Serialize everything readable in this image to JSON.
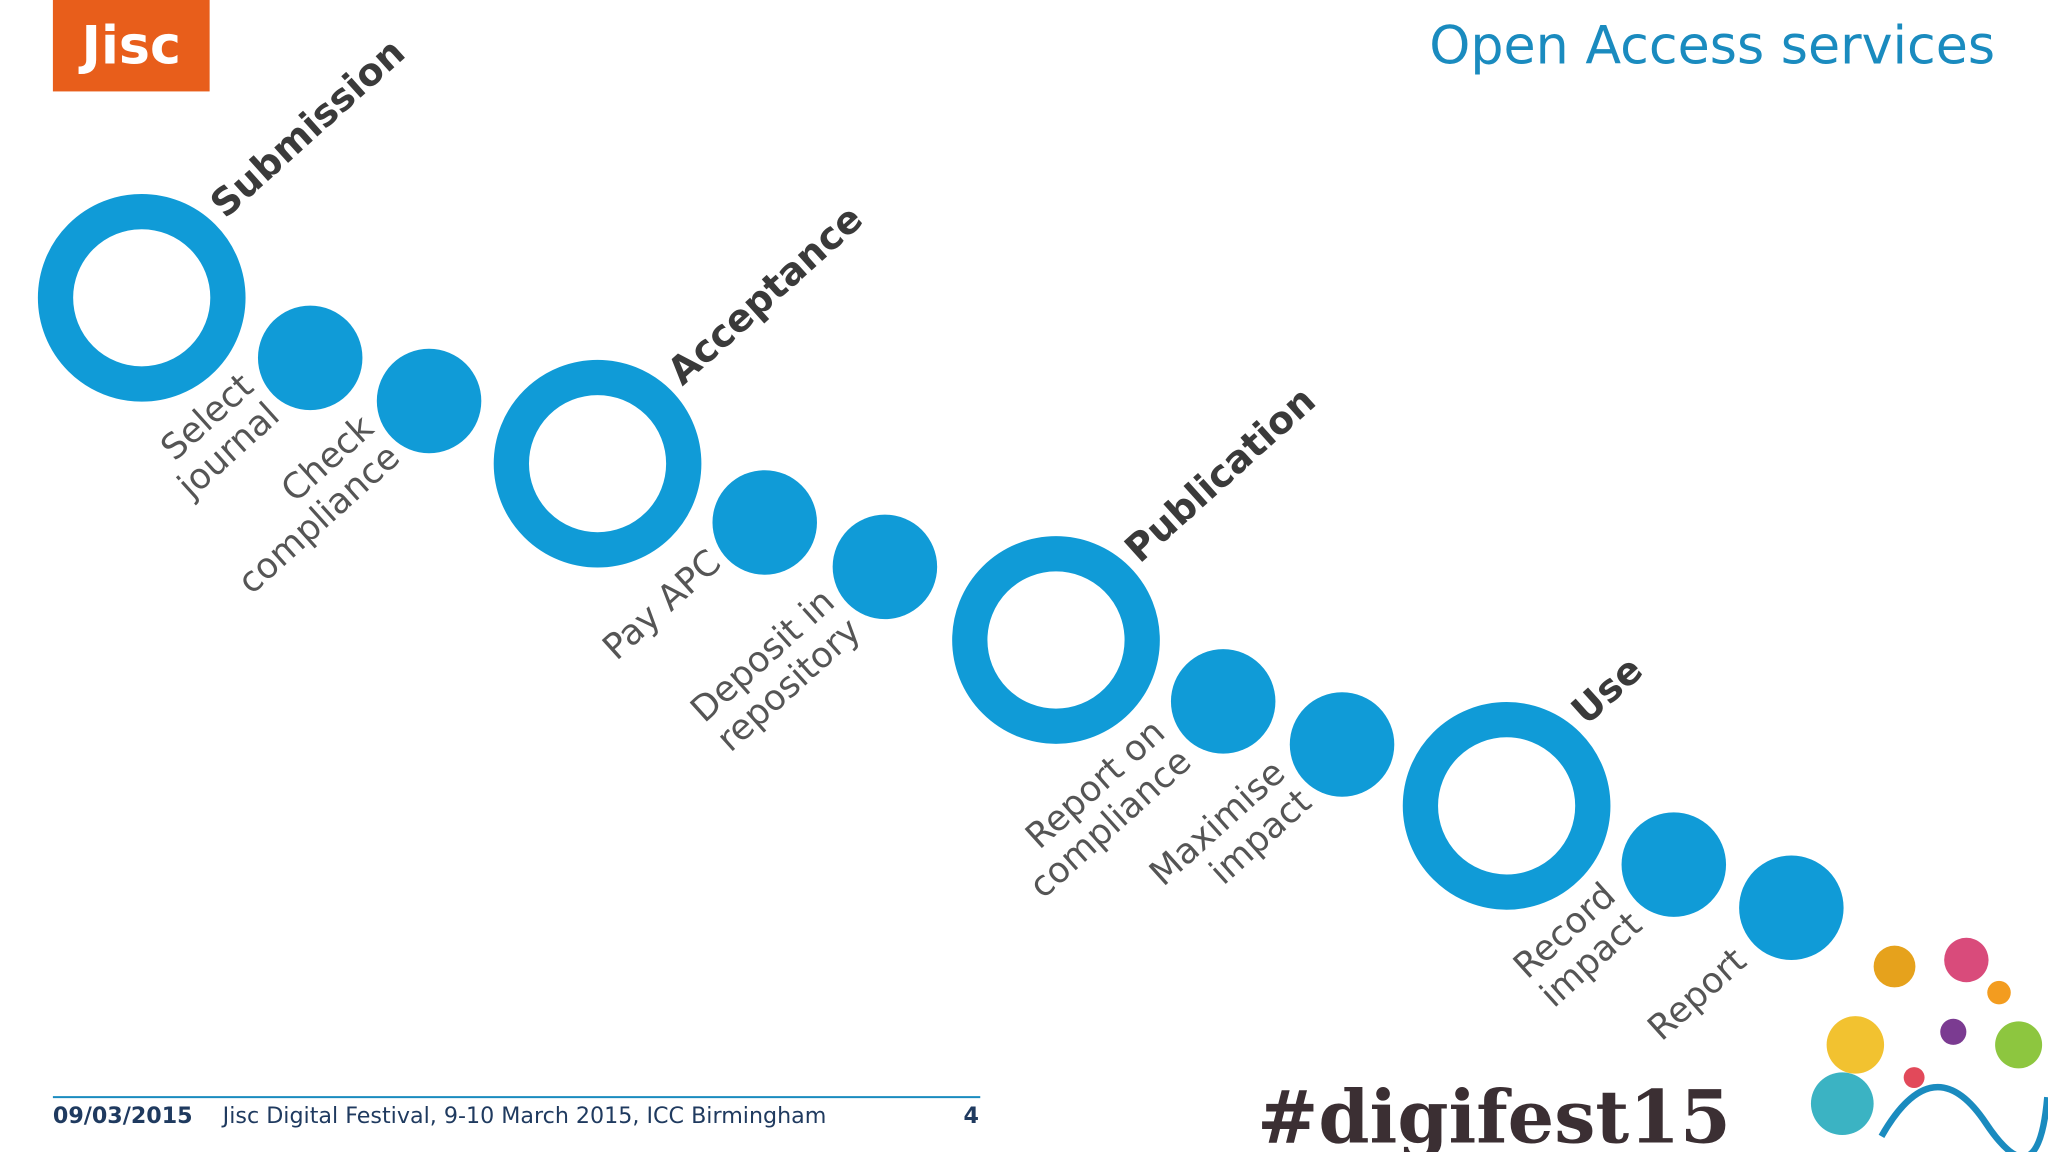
{
  "header": {
    "logo": "Jisc",
    "title": "Open Access services"
  },
  "stages": [
    {
      "label": "Submission",
      "steps": [
        [
          "Select",
          "journal"
        ],
        [
          "Check",
          "compliance"
        ]
      ]
    },
    {
      "label": "Acceptance",
      "steps": [
        [
          "Pay APC"
        ],
        [
          "Deposit in",
          "repository"
        ]
      ]
    },
    {
      "label": "Publication",
      "steps": [
        [
          "Report on",
          "compliance"
        ],
        [
          "Maximise",
          "impact"
        ]
      ]
    },
    {
      "label": "Use",
      "steps": [
        [
          "Record",
          "impact"
        ],
        [
          "Report"
        ]
      ]
    }
  ],
  "footer": {
    "date": "09/03/2015",
    "event": "Jisc Digital Festival, 9-10 March 2015, ICC Birmingham",
    "page": "4",
    "brand": "#digifest15"
  }
}
